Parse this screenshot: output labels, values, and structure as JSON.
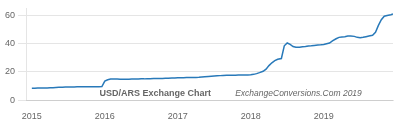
{
  "chart_data": {
    "type": "line",
    "title": "USD/ARS Exchange Chart",
    "annotations": [
      "ExchangeConversions.Com 2019"
    ],
    "color": "#2879b9",
    "grid": "y",
    "xlim": [
      2014.92,
      2019.95
    ],
    "xticks": [
      2015,
      2016,
      2017,
      2018,
      2019
    ],
    "ylim": [
      0,
      65
    ],
    "yticks": [
      0,
      20,
      40,
      60
    ],
    "x": [
      2015.0,
      2015.04,
      2015.08,
      2015.12,
      2015.17,
      2015.21,
      2015.25,
      2015.29,
      2015.33,
      2015.37,
      2015.42,
      2015.46,
      2015.5,
      2015.54,
      2015.58,
      2015.62,
      2015.67,
      2015.71,
      2015.75,
      2015.79,
      2015.83,
      2015.87,
      2015.92,
      2015.96,
      2016.0,
      2016.04,
      2016.08,
      2016.12,
      2016.17,
      2016.21,
      2016.25,
      2016.29,
      2016.33,
      2016.37,
      2016.42,
      2016.46,
      2016.5,
      2016.54,
      2016.58,
      2016.62,
      2016.67,
      2016.71,
      2016.75,
      2016.79,
      2016.83,
      2016.87,
      2016.92,
      2016.96,
      2017.0,
      2017.04,
      2017.08,
      2017.12,
      2017.17,
      2017.21,
      2017.25,
      2017.29,
      2017.33,
      2017.37,
      2017.42,
      2017.46,
      2017.5,
      2017.54,
      2017.58,
      2017.62,
      2017.67,
      2017.71,
      2017.75,
      2017.79,
      2017.83,
      2017.87,
      2017.92,
      2017.96,
      2018.0,
      2018.04,
      2018.08,
      2018.12,
      2018.17,
      2018.21,
      2018.25,
      2018.29,
      2018.33,
      2018.37,
      2018.42,
      2018.46,
      2018.5,
      2018.54,
      2018.58,
      2018.62,
      2018.67,
      2018.71,
      2018.75,
      2018.79,
      2018.83,
      2018.87,
      2018.92,
      2018.96,
      2019.0,
      2019.04,
      2019.08,
      2019.12,
      2019.17,
      2019.21,
      2019.25,
      2019.29,
      2019.33,
      2019.37,
      2019.42,
      2019.46,
      2019.5,
      2019.54,
      2019.58,
      2019.62,
      2019.67,
      2019.71,
      2019.75,
      2019.79,
      2019.83,
      2019.87,
      2019.92,
      2019.95
    ],
    "values": [
      8.5,
      8.5,
      8.6,
      8.6,
      8.7,
      8.7,
      8.8,
      8.9,
      9.0,
      9.1,
      9.2,
      9.3,
      9.3,
      9.4,
      9.4,
      9.5,
      9.5,
      9.5,
      9.5,
      9.5,
      9.6,
      9.6,
      9.6,
      9.7,
      13.5,
      14.5,
      15.0,
      15.0,
      15.0,
      14.9,
      14.9,
      14.9,
      14.9,
      15.0,
      15.0,
      15.0,
      15.1,
      15.1,
      15.2,
      15.2,
      15.3,
      15.3,
      15.4,
      15.4,
      15.5,
      15.6,
      15.7,
      15.8,
      15.9,
      15.9,
      15.9,
      16.0,
      16.0,
      16.0,
      16.1,
      16.2,
      16.4,
      16.6,
      16.8,
      17.0,
      17.2,
      17.3,
      17.4,
      17.5,
      17.6,
      17.6,
      17.7,
      17.7,
      17.8,
      17.8,
      17.9,
      17.9,
      18.0,
      18.3,
      18.8,
      19.5,
      20.5,
      22.0,
      24.5,
      26.5,
      28.0,
      29.0,
      29.5,
      38.5,
      40.5,
      39.5,
      38.0,
      37.5,
      37.5,
      37.8,
      38.0,
      38.3,
      38.5,
      38.8,
      39.0,
      39.2,
      39.5,
      40.0,
      40.5,
      42.0,
      43.5,
      44.5,
      44.8,
      45.0,
      45.5,
      45.5,
      45.2,
      44.5,
      44.2,
      44.5,
      45.0,
      45.5,
      46.0,
      48.0,
      53.0,
      57.0,
      59.5,
      60.0,
      60.5,
      61.0
    ]
  }
}
